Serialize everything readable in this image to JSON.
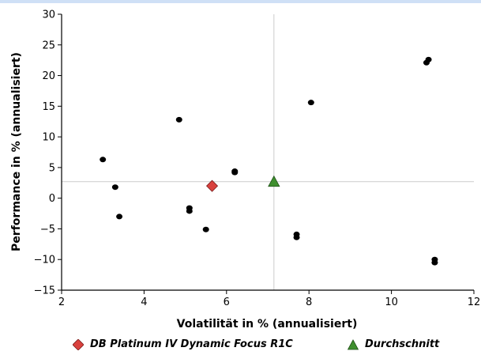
{
  "chart_data": {
    "type": "scatter",
    "xlabel": "Volatilität in % (annualisiert)",
    "ylabel": "Performance in % (annualisiert)",
    "xlim": [
      2,
      12
    ],
    "ylim": [
      -15,
      30
    ],
    "xticks": [
      2,
      4,
      6,
      8,
      10,
      12
    ],
    "yticks": [
      -15,
      -10,
      -5,
      0,
      5,
      10,
      15,
      20,
      25,
      30
    ],
    "reference_lines": {
      "x": 7.15,
      "y": 2.7
    },
    "series": [
      {
        "marker": "circle",
        "color": "#000000",
        "points": [
          {
            "x": 3.0,
            "y": 6.3
          },
          {
            "x": 3.3,
            "y": 1.8
          },
          {
            "x": 3.4,
            "y": -3.0
          },
          {
            "x": 4.85,
            "y": 12.8
          },
          {
            "x": 5.1,
            "y": -1.6
          },
          {
            "x": 5.1,
            "y": -2.1
          },
          {
            "x": 5.5,
            "y": -5.1
          },
          {
            "x": 6.2,
            "y": 4.4
          },
          {
            "x": 6.2,
            "y": 4.2
          },
          {
            "x": 7.7,
            "y": -5.9
          },
          {
            "x": 7.7,
            "y": -6.4
          },
          {
            "x": 8.05,
            "y": 15.6
          },
          {
            "x": 10.85,
            "y": 22.1
          },
          {
            "x": 10.9,
            "y": 22.6
          },
          {
            "x": 11.05,
            "y": -10.0
          },
          {
            "x": 11.05,
            "y": -10.5
          }
        ]
      },
      {
        "name": "DB Platinum IV Dynamic Focus R1C",
        "marker": "diamond",
        "color": "#d9413e",
        "points": [
          {
            "x": 5.65,
            "y": 2.0
          }
        ]
      },
      {
        "name": "Durchschnitt",
        "marker": "triangle",
        "color": "#3f8f2f",
        "points": [
          {
            "x": 7.15,
            "y": 2.7
          }
        ]
      }
    ]
  },
  "legend": [
    {
      "label": "DB Platinum IV Dynamic Focus R1C",
      "icon": "diamond",
      "color": "#d9413e"
    },
    {
      "label": "Durchschnitt",
      "icon": "triangle",
      "color": "#3f8f2f"
    }
  ]
}
